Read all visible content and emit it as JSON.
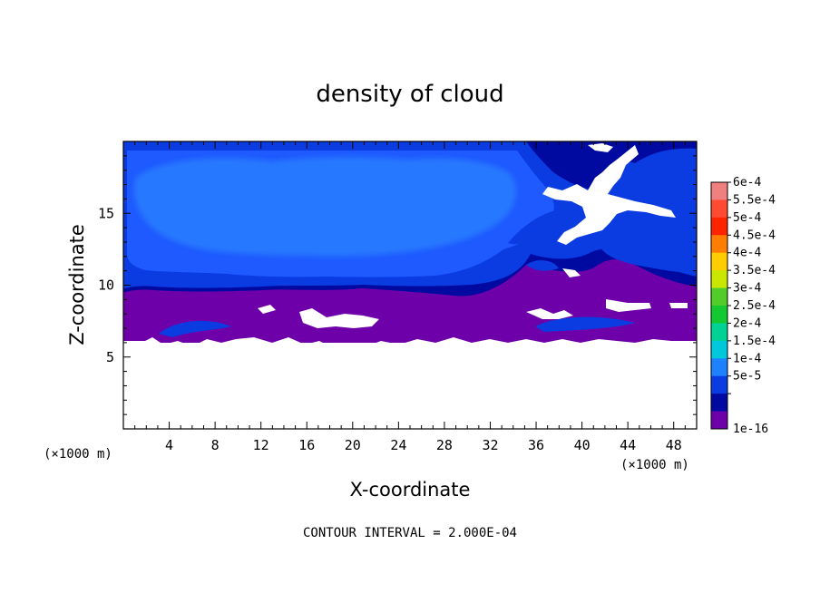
{
  "chart_data": {
    "type": "heatmap",
    "title": "density of cloud",
    "xlabel": "X-coordinate",
    "ylabel": "Z-coordinate",
    "x_unit": "(×1000 m)",
    "y_unit": "(×1000 m)",
    "xlim": [
      0,
      50
    ],
    "ylim": [
      0,
      20
    ],
    "x_ticks": [
      4,
      8,
      12,
      16,
      20,
      24,
      28,
      32,
      36,
      40,
      44,
      48
    ],
    "y_ticks": [
      5,
      10,
      15
    ],
    "contour_note": "CONTOUR INTERVAL = 2.000E-04",
    "colorbar": {
      "labels": [
        "6e-4",
        "5.5e-4",
        "5e-4",
        "4.5e-4",
        "4e-4",
        "3.5e-4",
        "3e-4",
        "2.5e-4",
        "2e-4",
        "1.5e-4",
        "1e-4",
        "5e-5",
        "1e-16"
      ],
      "colors": [
        "#f08080",
        "#ff4b32",
        "#ff2400",
        "#ff7d00",
        "#ffcc00",
        "#c8e600",
        "#50cd28",
        "#14c832",
        "#00d296",
        "#00c8dc",
        "#1e82ff",
        "#0a3ce1",
        "#000aa0",
        "#6e00aa"
      ]
    },
    "fields": {
      "no_cloud_below_z": 6.2,
      "background_value": "1e-16",
      "colors": {
        "background": "#6e00aa",
        "edge": "#000aa0",
        "band_5e5": "#0a3ce1",
        "band_1e4": "#1e5aff",
        "core_1e4": "#2878ff",
        "empty": "#ffffff"
      }
    }
  }
}
